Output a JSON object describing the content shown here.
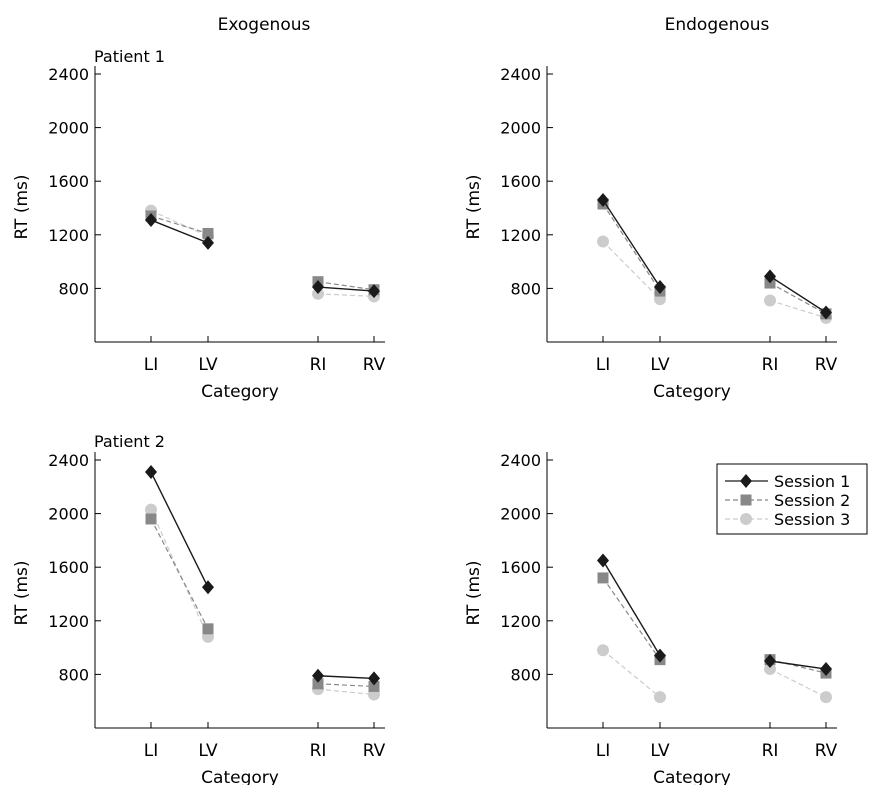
{
  "column_titles": [
    "Exogenous",
    "Endogenous"
  ],
  "panel_labels": [
    "Patient 1",
    "Patient 2"
  ],
  "legend": [
    "Session 1",
    "Session 2",
    "Session 3"
  ],
  "series_styles": [
    {
      "name": "Session 1",
      "color": "#1a1a1a",
      "marker": "diamond",
      "line": "solid"
    },
    {
      "name": "Session 2",
      "color": "#888888",
      "marker": "square",
      "line": "dashed"
    },
    {
      "name": "Session 3",
      "color": "#cccccc",
      "marker": "circle",
      "line": "dashed"
    }
  ],
  "chart_data": [
    {
      "type": "line",
      "title": "Exogenous",
      "panel_label": "Patient 1",
      "categories": [
        "LI",
        "LV",
        "RI",
        "RV"
      ],
      "groups": [
        [
          "LI",
          "LV"
        ],
        [
          "RI",
          "RV"
        ]
      ],
      "xlabel": "Category",
      "ylabel": "RT (ms)",
      "yticks": [
        800,
        1200,
        1600,
        2000,
        2400
      ],
      "ylim": [
        400,
        2400
      ],
      "series": [
        {
          "name": "Session 1",
          "values": [
            1310,
            1140,
            810,
            780
          ]
        },
        {
          "name": "Session 2",
          "values": [
            1340,
            1210,
            850,
            790
          ]
        },
        {
          "name": "Session 3",
          "values": [
            1380,
            1190,
            760,
            740
          ]
        }
      ]
    },
    {
      "type": "line",
      "title": "Endogenous",
      "panel_label": "",
      "categories": [
        "LI",
        "LV",
        "RI",
        "RV"
      ],
      "groups": [
        [
          "LI",
          "LV"
        ],
        [
          "RI",
          "RV"
        ]
      ],
      "xlabel": "Category",
      "ylabel": "RT (ms)",
      "yticks": [
        800,
        1200,
        1600,
        2000,
        2400
      ],
      "ylim": [
        400,
        2400
      ],
      "series": [
        {
          "name": "Session 1",
          "values": [
            1460,
            810,
            890,
            620
          ]
        },
        {
          "name": "Session 2",
          "values": [
            1430,
            780,
            840,
            610
          ]
        },
        {
          "name": "Session 3",
          "values": [
            1150,
            720,
            710,
            580
          ]
        }
      ]
    },
    {
      "type": "line",
      "title": "",
      "panel_label": "Patient 2",
      "categories": [
        "LI",
        "LV",
        "RI",
        "RV"
      ],
      "groups": [
        [
          "LI",
          "LV"
        ],
        [
          "RI",
          "RV"
        ]
      ],
      "xlabel": "Category",
      "ylabel": "RT (ms)",
      "yticks": [
        800,
        1200,
        1600,
        2000,
        2400
      ],
      "ylim": [
        400,
        2400
      ],
      "series": [
        {
          "name": "Session 1",
          "values": [
            2310,
            1450,
            790,
            770
          ]
        },
        {
          "name": "Session 2",
          "values": [
            1960,
            1140,
            730,
            710
          ]
        },
        {
          "name": "Session 3",
          "values": [
            2030,
            1080,
            690,
            650
          ]
        }
      ]
    },
    {
      "type": "line",
      "title": "",
      "panel_label": "",
      "categories": [
        "LI",
        "LV",
        "RI",
        "RV"
      ],
      "groups": [
        [
          "LI",
          "LV"
        ],
        [
          "RI",
          "RV"
        ]
      ],
      "xlabel": "Category",
      "ylabel": "RT (ms)",
      "yticks": [
        800,
        1200,
        1600,
        2000,
        2400
      ],
      "ylim": [
        400,
        2400
      ],
      "legend_position": "top-right",
      "series": [
        {
          "name": "Session 1",
          "values": [
            1650,
            940,
            900,
            840
          ]
        },
        {
          "name": "Session 2",
          "values": [
            1520,
            910,
            910,
            810
          ]
        },
        {
          "name": "Session 3",
          "values": [
            980,
            630,
            840,
            630
          ]
        }
      ]
    }
  ]
}
